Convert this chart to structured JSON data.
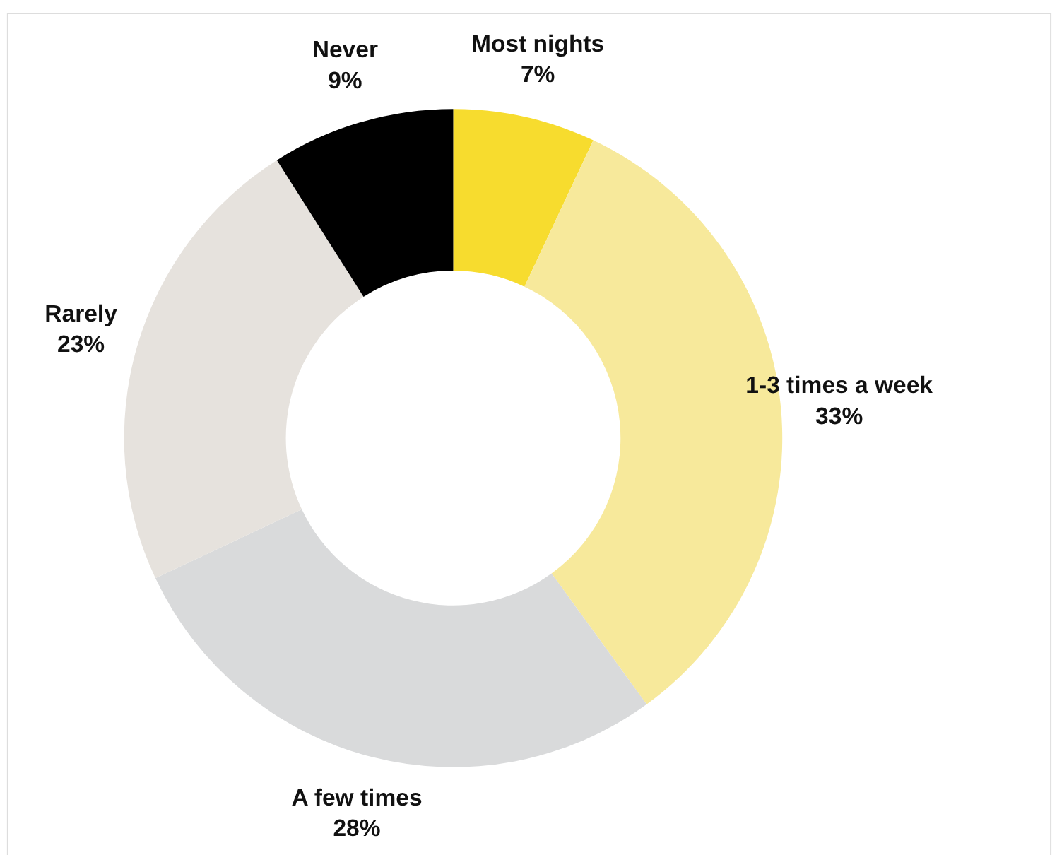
{
  "chart_data": {
    "type": "donut",
    "categories": [
      "Most nights",
      "1-3 times a week",
      "A few times",
      "Rarely",
      "Never"
    ],
    "values": [
      7,
      33,
      28,
      23,
      9
    ],
    "value_labels": [
      "7%",
      "33%",
      "28%",
      "23%",
      "9%"
    ],
    "colors": [
      "#f7dc2e",
      "#f7e99b",
      "#d9dadb",
      "#e6e2dd",
      "#000000"
    ]
  }
}
